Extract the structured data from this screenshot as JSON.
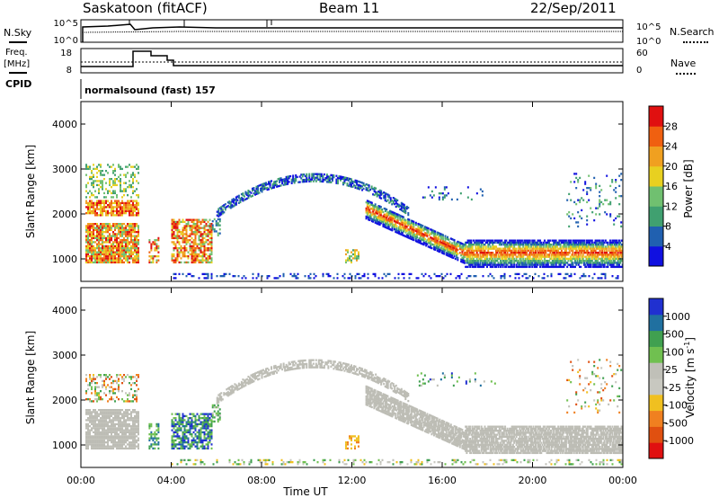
{
  "header": {
    "station": "Saskatoon (fitACF)",
    "beam": "Beam 11",
    "date": "22/Sep/2011"
  },
  "top_panels": {
    "nsky_label": "N.Sky",
    "nsky_ticks": [
      "10^5",
      "10^0"
    ],
    "nsearch_label": "N.Search",
    "nsearch_ticks": [
      "10^5",
      "10^0"
    ],
    "freq_label": "Freq.",
    "freq_unit": "[MHz]",
    "freq_ticks": [
      "18",
      "8"
    ],
    "nave_label": "Nave",
    "nave_ticks": [
      "60",
      "0"
    ],
    "cpid_label": "CPID",
    "cpid_text": "normalsound (fast) 157"
  },
  "colors": {
    "power_scale": [
      "#1010e0",
      "#2060b0",
      "#40a070",
      "#70c070",
      "#e8d020",
      "#f0a020",
      "#f06010",
      "#e01010"
    ],
    "velocity_scale": [
      "#2030d0",
      "#2070a0",
      "#40a050",
      "#70c050",
      "#c0c0b8",
      "#c8c8c0",
      "#f0c020",
      "#f08020",
      "#e05010",
      "#e01010"
    ],
    "ground_scatter": "#bdbdb5"
  },
  "chart_data": [
    {
      "type": "heatmap",
      "title": "Power",
      "ylabel": "Slant Range [km]",
      "xlabel": "Time UT",
      "x_ticks": [
        "00:00",
        "04:00",
        "08:00",
        "12:00",
        "16:00",
        "20:00",
        "00:00"
      ],
      "y_ticks": [
        "1000",
        "2000",
        "3000",
        "4000"
      ],
      "ylim": [
        500,
        4500
      ],
      "colorbar_label": "Power [dB]",
      "colorbar_ticks": [
        "4",
        "8",
        "12",
        "16",
        "20",
        "24",
        "28"
      ]
    },
    {
      "type": "heatmap",
      "title": "Velocity",
      "ylabel": "Slant Range [km]",
      "xlabel": "Time UT",
      "x_ticks": [
        "00:00",
        "04:00",
        "08:00",
        "12:00",
        "16:00",
        "20:00",
        "00:00"
      ],
      "y_ticks": [
        "1000",
        "2000",
        "3000",
        "4000"
      ],
      "ylim": [
        500,
        4500
      ],
      "colorbar_label": "Velocity [m s",
      "colorbar_label_sup": "-1",
      "colorbar_label_close": "]",
      "colorbar_ticks": [
        "1000",
        "500",
        "100",
        "25",
        "-25",
        "-100",
        "-500",
        "-1000"
      ]
    }
  ]
}
